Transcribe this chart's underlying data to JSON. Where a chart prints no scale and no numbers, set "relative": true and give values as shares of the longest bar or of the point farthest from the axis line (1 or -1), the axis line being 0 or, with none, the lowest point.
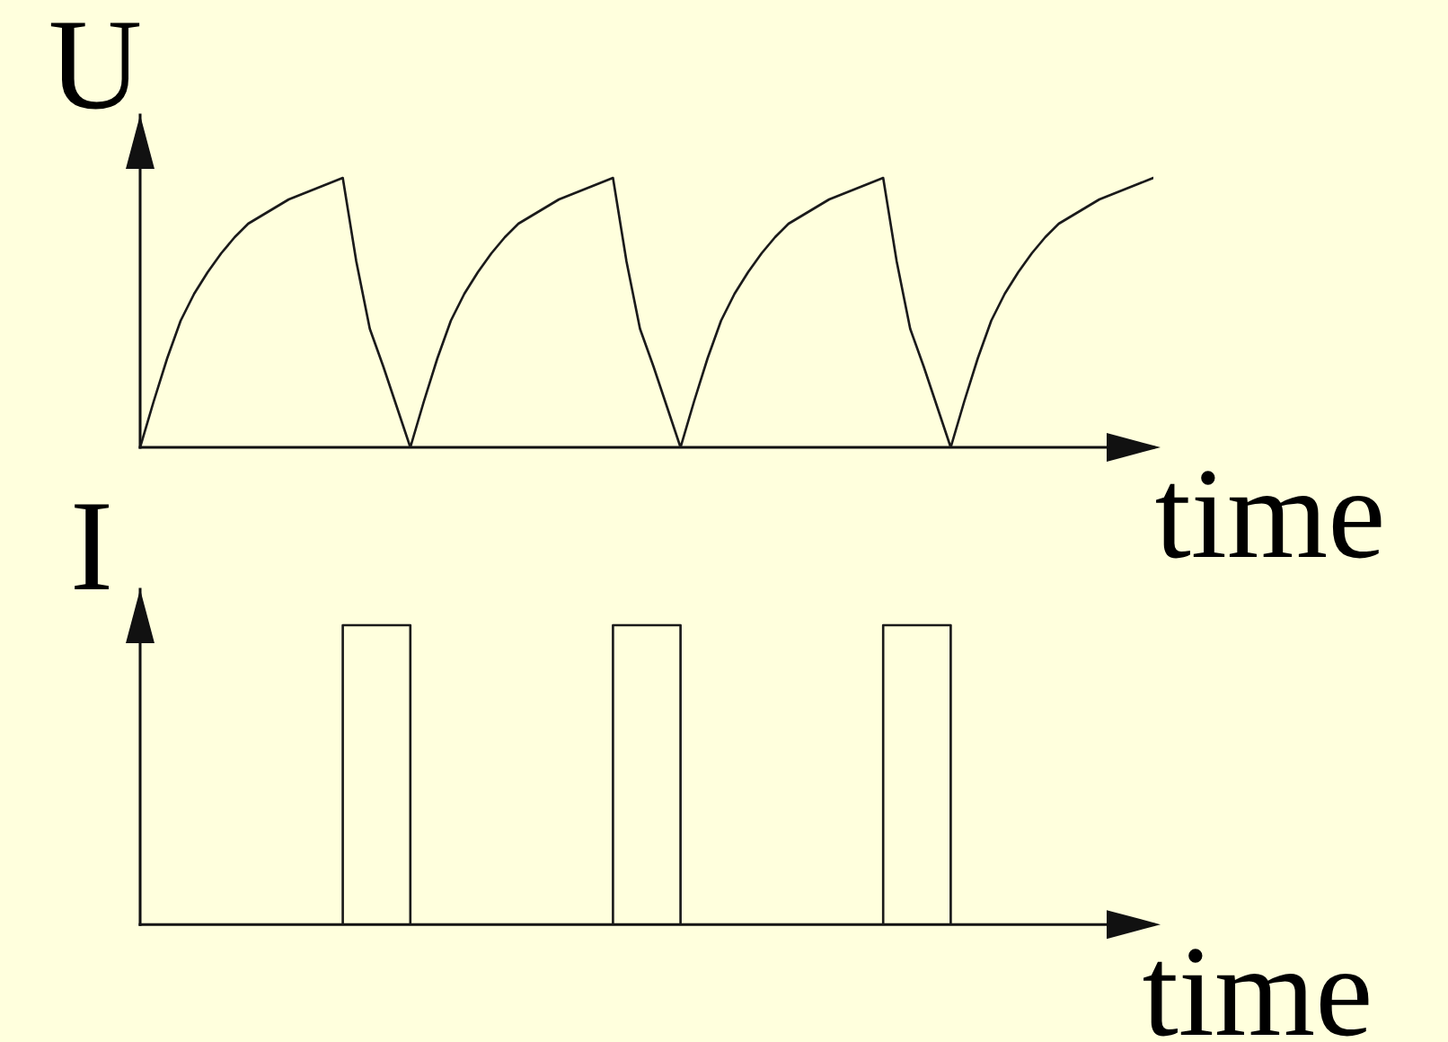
{
  "chart_data": [
    {
      "type": "line",
      "ylabel": "U",
      "xlabel": "time",
      "relative": true,
      "color": "#1a1a1a",
      "categories": [
        null,
        null,
        null,
        null,
        null,
        null,
        null,
        null,
        null,
        null,
        null,
        null,
        null,
        null,
        null,
        null,
        null,
        null,
        null,
        null,
        null,
        null,
        null,
        null,
        null,
        null,
        null,
        null,
        null,
        null,
        null,
        null,
        null,
        null,
        null,
        null,
        null,
        null,
        null,
        null,
        null,
        null,
        null,
        null,
        null,
        null,
        null,
        null,
        null,
        null,
        null,
        null,
        null,
        null,
        null,
        null,
        null,
        null,
        null,
        null,
        null,
        null,
        null,
        null,
        null,
        null,
        null,
        null,
        null,
        null,
        null,
        null,
        null,
        null,
        null,
        null
      ],
      "values": [
        0,
        0.17,
        0.33,
        0.47,
        0.57,
        0.65,
        0.72,
        0.78,
        0.83,
        0.86,
        0.89,
        0.92,
        0.94,
        0.96,
        0.98,
        1,
        0.69,
        0.44,
        0.3,
        0.15,
        0,
        0.17,
        0.33,
        0.47,
        0.57,
        0.65,
        0.72,
        0.78,
        0.83,
        0.86,
        0.89,
        0.92,
        0.94,
        0.96,
        0.98,
        1,
        0.69,
        0.44,
        0.3,
        0.15,
        0,
        0.17,
        0.33,
        0.47,
        0.57,
        0.65,
        0.72,
        0.78,
        0.83,
        0.86,
        0.89,
        0.92,
        0.94,
        0.96,
        0.98,
        1,
        0.69,
        0.44,
        0.3,
        0.15,
        0,
        0.17,
        0.33,
        0.47,
        0.57,
        0.65,
        0.72,
        0.78,
        0.83,
        0.86,
        0.89,
        0.92,
        0.94,
        0.96,
        0.98,
        1
      ]
    },
    {
      "type": "step",
      "ylabel": "I",
      "xlabel": "time",
      "relative": true,
      "color": "#1a1a1a",
      "categories": [
        null,
        null,
        null,
        null,
        null,
        null,
        null,
        null,
        null,
        null,
        null,
        null,
        null,
        null,
        null,
        null,
        null,
        null,
        null,
        null,
        null,
        null,
        null,
        null,
        null,
        null,
        null,
        null,
        null,
        null,
        null,
        null,
        null,
        null,
        null,
        null,
        null,
        null,
        null,
        null,
        null,
        null,
        null,
        null,
        null,
        null,
        null,
        null,
        null,
        null,
        null,
        null,
        null,
        null,
        null,
        null,
        null,
        null,
        null,
        null,
        null,
        null,
        null,
        null,
        null,
        null,
        null,
        null,
        null,
        null,
        null,
        null,
        null,
        null,
        null,
        null
      ],
      "values": [
        0,
        0,
        0,
        0,
        0,
        0,
        0,
        0,
        0,
        0,
        0,
        0,
        0,
        0,
        0,
        1,
        1,
        1,
        1,
        1,
        0,
        0,
        0,
        0,
        0,
        0,
        0,
        0,
        0,
        0,
        0,
        0,
        0,
        0,
        0,
        1,
        1,
        1,
        1,
        1,
        0,
        0,
        0,
        0,
        0,
        0,
        0,
        0,
        0,
        0,
        0,
        0,
        0,
        0,
        0,
        1,
        1,
        1,
        1,
        1,
        0,
        0,
        0,
        0,
        0,
        0,
        0,
        0,
        0,
        0,
        0,
        0,
        null,
        null,
        null,
        null
      ]
    }
  ]
}
